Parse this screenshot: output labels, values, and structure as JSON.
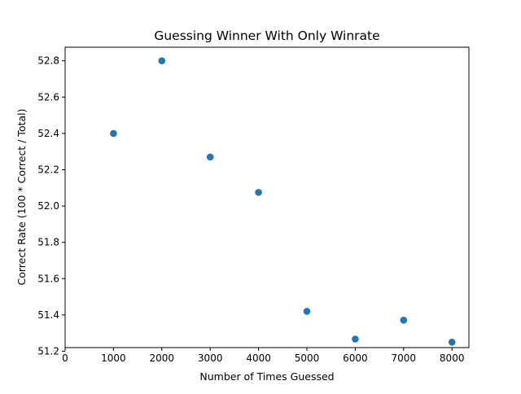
{
  "chart_data": {
    "type": "scatter",
    "title": "Guessing Winner With Only Winrate",
    "xlabel": "Number of Times Guessed",
    "ylabel": "Correct Rate (100 * Correct / Total)",
    "x": [
      1000,
      2000,
      3000,
      4000,
      5000,
      6000,
      7000,
      8000
    ],
    "y": [
      52.4,
      52.8,
      52.27,
      52.075,
      51.42,
      51.267,
      51.371,
      51.25
    ],
    "xlim": [
      0,
      8350
    ],
    "ylim": [
      51.22,
      52.875
    ],
    "xticks": [
      0,
      1000,
      2000,
      3000,
      4000,
      5000,
      6000,
      7000,
      8000
    ],
    "xtick_labels": [
      "0",
      "1000",
      "2000",
      "3000",
      "4000",
      "5000",
      "6000",
      "7000",
      "8000"
    ],
    "yticks": [
      51.2,
      51.4,
      51.6,
      51.8,
      52.0,
      52.2,
      52.4,
      52.6,
      52.8
    ],
    "ytick_labels": [
      "51.2",
      "51.4",
      "51.6",
      "51.8",
      "52.0",
      "52.2",
      "52.4",
      "52.6",
      "52.8"
    ],
    "grid": false,
    "marker_color": "#1f77b4"
  }
}
